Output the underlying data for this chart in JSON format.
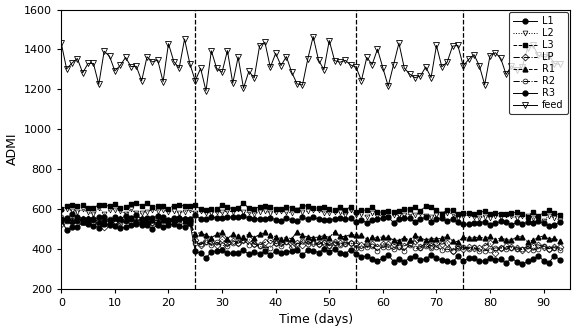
{
  "title": "",
  "xlabel": "Time (days)",
  "ylabel": "ADMI",
  "xlim": [
    0,
    95
  ],
  "ylim": [
    200,
    1600
  ],
  "yticks": [
    200,
    400,
    600,
    800,
    1000,
    1200,
    1400,
    1600
  ],
  "xticks": [
    0,
    10,
    20,
    30,
    40,
    50,
    60,
    70,
    80,
    90
  ],
  "vlines": [
    25,
    55,
    75
  ],
  "s1": 25,
  "s2": 55,
  "s3": 75,
  "background": "#ffffff"
}
